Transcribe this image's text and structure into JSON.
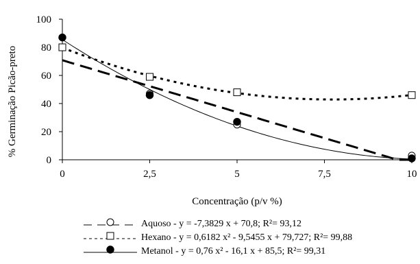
{
  "chart_data": {
    "type": "scatter",
    "xlabel": "Concentração (p/v %)",
    "ylabel": "% Germinação Picão-preto",
    "xlim": [
      0,
      10
    ],
    "ylim": [
      0,
      100
    ],
    "x_ticks": [
      "0",
      "2,5",
      "5",
      "7,5",
      "10"
    ],
    "y_ticks": [
      "0",
      "20",
      "40",
      "60",
      "80",
      "100"
    ],
    "x_tick_values": [
      0,
      2.5,
      5,
      7.5,
      10
    ],
    "y_tick_values": [
      0,
      20,
      40,
      60,
      80,
      100
    ],
    "grid": false,
    "legend_position": "bottom",
    "series": [
      {
        "name": "Aquoso",
        "marker": "open-circle",
        "line": "long-dash",
        "x": [
          0,
          2.5,
          5,
          10
        ],
        "y": [
          87,
          47,
          25,
          3
        ],
        "fit": {
          "type": "linear",
          "coef": [
            70.8,
            -7.3829
          ]
        },
        "legend_label": "Aquoso - y = -7,3829 x + 70,8; R²= 93,12"
      },
      {
        "name": "Hexano",
        "marker": "open-square",
        "line": "dotted",
        "x": [
          0,
          2.5,
          5,
          10
        ],
        "y": [
          80,
          59,
          48,
          46
        ],
        "fit": {
          "type": "quadratic",
          "coef": [
            79.727,
            -9.5455,
            0.6182
          ]
        },
        "legend_label": "Hexano - y = 0,6182 x² - 9,5455 x + 79,727; R²= 99,88"
      },
      {
        "name": "Metanol",
        "marker": "filled-circle",
        "line": "solid",
        "x": [
          0,
          2.5,
          5,
          10
        ],
        "y": [
          87,
          46,
          27,
          1
        ],
        "fit": {
          "type": "quadratic",
          "coef": [
            85.5,
            -16.1,
            0.76
          ]
        },
        "legend_label": "Metanol - y = 0,76 x² - 16,1 x + 85,5; R²= 99,31"
      }
    ]
  }
}
